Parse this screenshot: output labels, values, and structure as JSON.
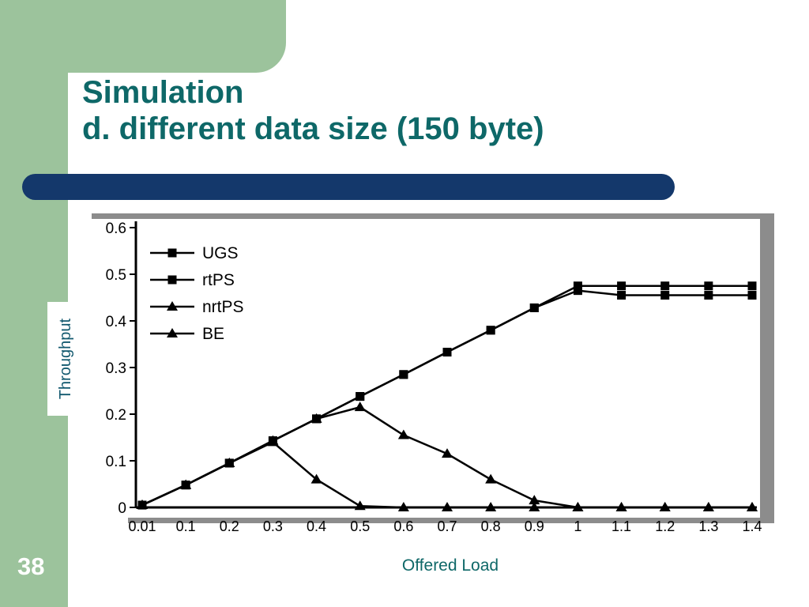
{
  "page_number": "38",
  "title": {
    "line1": "Simulation",
    "line2": "d. different data size (150 byte)"
  },
  "colors": {
    "band_green": "#9cc39c",
    "divider_navy": "#14386b",
    "title_teal": "#0e6868",
    "axis_label_teal": "#0f6868",
    "chart_frame_gray": "#8c8c8c",
    "series_color": "#000000",
    "page_number_white": "#ffffff"
  },
  "chart_data": {
    "type": "line",
    "categories": [
      "0.01",
      "0.1",
      "0.2",
      "0.3",
      "0.4",
      "0.5",
      "0.6",
      "0.7",
      "0.8",
      "0.9",
      "1",
      "1.1",
      "1.2",
      "1.3",
      "1.4"
    ],
    "series": [
      {
        "name": "UGS",
        "marker": "square",
        "values": [
          0.005,
          0.048,
          0.095,
          0.143,
          0.19,
          0.238,
          0.285,
          0.333,
          0.38,
          0.428,
          0.475,
          0.475,
          0.475,
          0.475,
          0.475
        ]
      },
      {
        "name": "rtPS",
        "marker": "square",
        "values": [
          0.005,
          0.048,
          0.095,
          0.143,
          0.19,
          0.238,
          0.285,
          0.333,
          0.38,
          0.428,
          0.465,
          0.455,
          0.455,
          0.455,
          0.455
        ]
      },
      {
        "name": "nrtPS",
        "marker": "triangle",
        "values": [
          0.005,
          0.048,
          0.095,
          0.143,
          0.19,
          0.215,
          0.155,
          0.115,
          0.06,
          0.015,
          0,
          0,
          0,
          0,
          0
        ]
      },
      {
        "name": "BE",
        "marker": "triangle",
        "values": [
          0.005,
          0.048,
          0.095,
          0.14,
          0.06,
          0.003,
          0,
          0,
          0,
          0,
          0,
          0,
          0,
          0,
          0
        ]
      }
    ],
    "title": "",
    "xlabel": "Offered Load",
    "ylabel": "Throughput",
    "ylim": [
      0,
      0.6
    ],
    "yticks": [
      "0",
      "0.1",
      "0.2",
      "0.3",
      "0.4",
      "0.5",
      "0.6"
    ],
    "legend_position": "top-left",
    "grid": false
  }
}
